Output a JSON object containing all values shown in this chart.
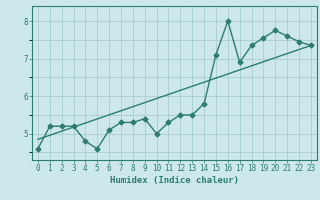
{
  "xlabel": "Humidex (Indice chaleur)",
  "x_data": [
    0,
    1,
    2,
    3,
    4,
    5,
    6,
    7,
    8,
    9,
    10,
    11,
    12,
    13,
    14,
    15,
    16,
    17,
    18,
    19,
    20,
    21,
    22,
    23
  ],
  "y_data": [
    4.6,
    5.2,
    5.2,
    5.2,
    4.8,
    4.6,
    5.1,
    5.3,
    5.3,
    5.4,
    5.0,
    5.3,
    5.5,
    5.5,
    5.8,
    7.1,
    8.0,
    6.9,
    7.35,
    7.55,
    7.75,
    7.6,
    7.45,
    7.35
  ],
  "trend_x": [
    0,
    23
  ],
  "trend_y": [
    4.85,
    7.35
  ],
  "line_color": "#2e7d6e",
  "bg_color": "#cce8ea",
  "grid_color": "#aacdd0",
  "ylim": [
    4.3,
    8.4
  ],
  "xlim": [
    -0.5,
    23.5
  ],
  "yticks": [
    5,
    6,
    7,
    8
  ],
  "xtick_labels": [
    "0",
    "1",
    "2",
    "3",
    "4",
    "5",
    "6",
    "7",
    "8",
    "9",
    "10",
    "11",
    "12",
    "13",
    "14",
    "15",
    "16",
    "17",
    "18",
    "19",
    "20",
    "21",
    "22",
    "23"
  ],
  "marker": "D",
  "marker_size": 2.5,
  "line_width": 1.0,
  "tick_fontsize": 5.5,
  "xlabel_fontsize": 6.5
}
